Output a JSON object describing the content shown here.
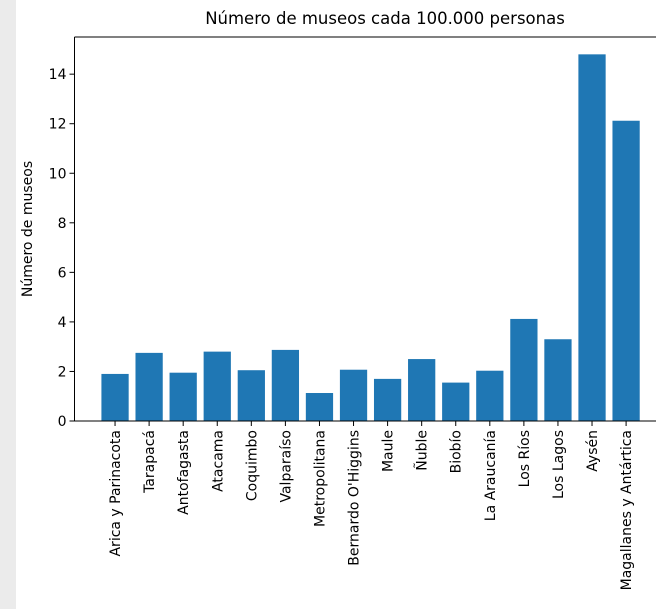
{
  "chart_data": {
    "type": "bar",
    "title": "Número de museos cada 100.000 personas",
    "y_label": "Número de museos",
    "categories": [
      "Arica y Parinacota",
      "Tarapacá",
      "Antofagasta",
      "Atacama",
      "Coquimbo",
      "Valparaíso",
      "Metropolitana",
      "Bernardo O'Higgins",
      "Maule",
      "Ñuble",
      "Biobío",
      "La Araucanía",
      "Los Ríos",
      "Los Lagos",
      "Aysén",
      "Magallanes y Antártica"
    ],
    "values": [
      1.9,
      2.75,
      1.95,
      2.8,
      2.05,
      2.87,
      1.13,
      2.07,
      1.7,
      2.5,
      1.55,
      2.03,
      4.12,
      3.3,
      14.8,
      12.12
    ],
    "color": "#1f77b4",
    "ylim": [
      0,
      15.5
    ],
    "yticks": [
      0,
      2,
      4,
      6,
      8,
      10,
      12,
      14
    ],
    "grid": false
  }
}
